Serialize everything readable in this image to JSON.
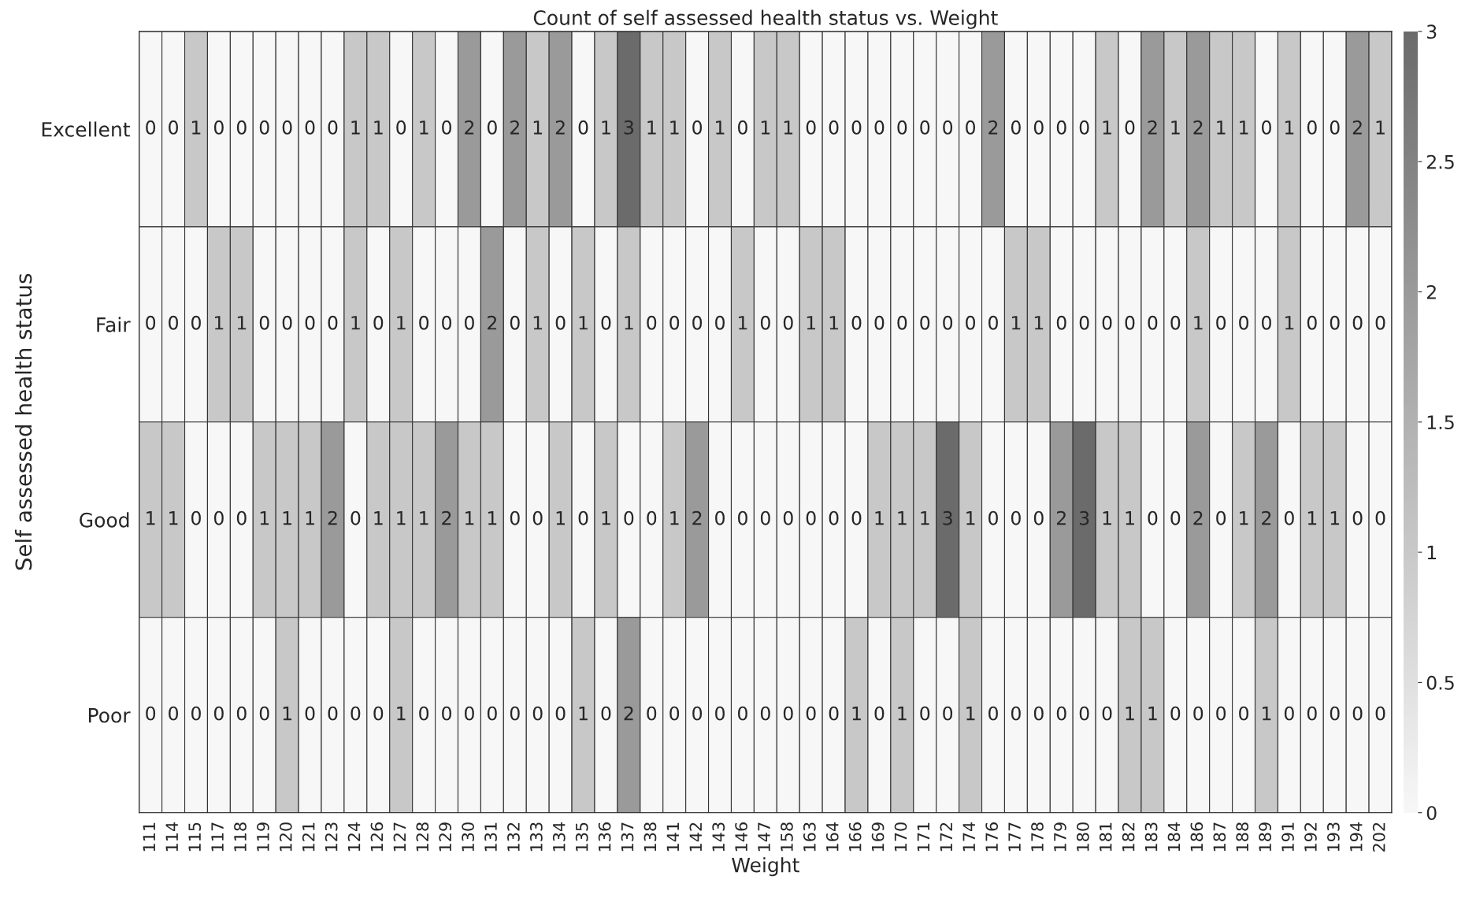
{
  "chart_data": {
    "type": "heatmap",
    "title": "Count of self assessed health status vs. Weight",
    "xlabel": "Weight",
    "ylabel": "Self assessed health status",
    "categories": [
      "111",
      "114",
      "115",
      "117",
      "118",
      "119",
      "120",
      "121",
      "123",
      "124",
      "126",
      "127",
      "128",
      "129",
      "130",
      "131",
      "132",
      "133",
      "134",
      "135",
      "136",
      "137",
      "138",
      "141",
      "142",
      "143",
      "146",
      "147",
      "158",
      "163",
      "164",
      "166",
      "169",
      "170",
      "171",
      "172",
      "174",
      "176",
      "177",
      "178",
      "179",
      "180",
      "181",
      "182",
      "183",
      "184",
      "186",
      "187",
      "188",
      "189",
      "191",
      "192",
      "193",
      "194",
      "202"
    ],
    "y_categories": [
      "Excellent",
      "Fair",
      "Good",
      "Poor"
    ],
    "cells": [
      [
        0,
        0,
        1,
        0,
        0,
        0,
        0,
        0,
        0,
        1,
        1,
        0,
        1,
        0,
        2,
        0,
        2,
        1,
        2,
        0,
        1,
        3,
        1,
        1,
        0,
        1,
        0,
        1,
        1,
        0,
        0,
        0,
        0,
        0,
        0,
        0,
        0,
        2,
        0,
        0,
        0,
        0,
        1,
        0,
        2,
        1,
        2,
        1,
        1,
        0,
        1,
        0,
        0,
        2,
        1
      ],
      [
        0,
        0,
        0,
        1,
        1,
        0,
        0,
        0,
        0,
        1,
        0,
        1,
        0,
        0,
        0,
        2,
        0,
        1,
        0,
        1,
        0,
        1,
        0,
        0,
        0,
        0,
        1,
        0,
        0,
        1,
        1,
        0,
        0,
        0,
        0,
        0,
        0,
        0,
        1,
        1,
        0,
        0,
        0,
        0,
        0,
        0,
        1,
        0,
        0,
        0,
        1,
        0,
        0,
        0,
        0
      ],
      [
        1,
        1,
        0,
        0,
        0,
        1,
        1,
        1,
        2,
        0,
        1,
        1,
        1,
        2,
        1,
        1,
        0,
        0,
        1,
        0,
        1,
        0,
        0,
        1,
        2,
        0,
        0,
        0,
        0,
        0,
        0,
        0,
        1,
        1,
        1,
        3,
        1,
        0,
        0,
        0,
        2,
        3,
        1,
        1,
        0,
        0,
        2,
        0,
        1,
        2,
        0,
        1,
        1,
        0,
        0
      ],
      [
        0,
        0,
        0,
        0,
        0,
        0,
        1,
        0,
        0,
        0,
        0,
        1,
        0,
        0,
        0,
        0,
        0,
        0,
        0,
        1,
        0,
        2,
        0,
        0,
        0,
        0,
        0,
        0,
        0,
        0,
        0,
        1,
        0,
        1,
        0,
        0,
        1,
        0,
        0,
        0,
        0,
        0,
        0,
        1,
        1,
        0,
        0,
        0,
        0,
        1,
        0,
        0,
        0,
        0,
        0
      ]
    ],
    "clim": [
      0,
      3
    ],
    "cticks": [
      0,
      0.5,
      1,
      1.5,
      2,
      2.5,
      3
    ],
    "colors": [
      "#f7f7f7",
      "#6b6b6b"
    ],
    "data_labels": true
  }
}
